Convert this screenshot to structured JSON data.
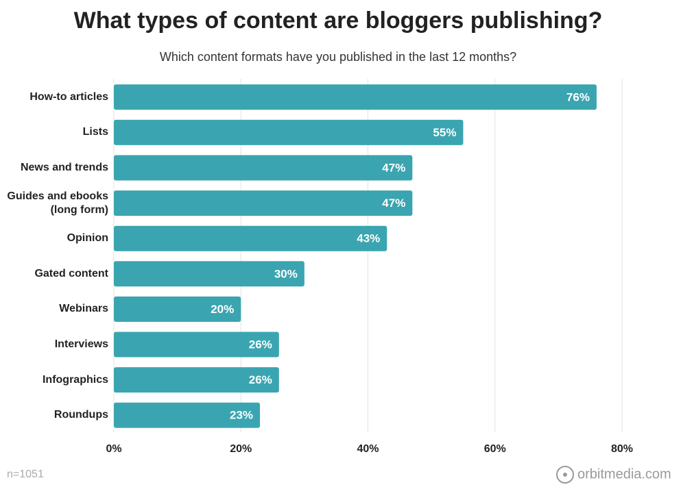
{
  "chart_data": {
    "type": "bar",
    "orientation": "horizontal",
    "title": "What types of content are bloggers publishing?",
    "subtitle": "Which content formats have you published in the last 12 months?",
    "categories": [
      "How-to articles",
      "Lists",
      "News and trends",
      "Guides and ebooks\n(long form)",
      "Opinion",
      "Gated content",
      "Webinars",
      "Interviews",
      "Infographics",
      "Roundups"
    ],
    "values": [
      76,
      55,
      47,
      47,
      43,
      30,
      20,
      26,
      26,
      23
    ],
    "value_labels": [
      "76%",
      "55%",
      "47%",
      "47%",
      "43%",
      "30%",
      "20%",
      "26%",
      "26%",
      "23%"
    ],
    "color": "#3aa5b0",
    "xlim": [
      0,
      80
    ],
    "xticks": [
      {
        "value": 0,
        "label": "0%"
      },
      {
        "value": 20,
        "label": "20%"
      },
      {
        "value": 40,
        "label": "40%"
      },
      {
        "value": 60,
        "label": "60%"
      },
      {
        "value": 80,
        "label": "80%"
      }
    ],
    "grid": true,
    "note": "n=1051",
    "source": "orbitmedia.com"
  }
}
